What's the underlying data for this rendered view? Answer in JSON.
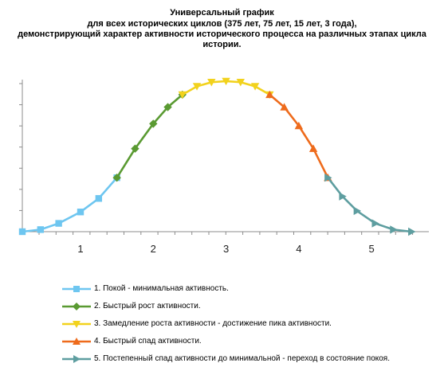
{
  "title_lines": [
    "Универсальный график",
    "для всех  исторических циклов (375 лет, 75 лет, 15 лет, 3 года),",
    "демонстрирующий характер активности исторического процесса на различных этапах цикла истории."
  ],
  "chart_data": {
    "type": "line",
    "title": "Универсальный график для всех исторических циклов (375 лет, 75 лет, 15 лет, 3 года), демонстрирующий характер активности исторического процесса на различных этапах цикла истории.",
    "x_tick_labels": [
      "1",
      "2",
      "3",
      "4",
      "5"
    ],
    "x_tick_positions": [
      1,
      2,
      3,
      4,
      5
    ],
    "xlim": [
      0.2,
      5.7
    ],
    "ylim": [
      0,
      7
    ],
    "y_tick_count": 8,
    "grid": false,
    "legend_position": "bottom",
    "series": [
      {
        "name": "1. Покой - минимальная активность.",
        "color": "#6ec6f0",
        "marker": "square",
        "x": [
          0.2,
          0.45,
          0.7,
          1.0,
          1.25,
          1.5
        ],
        "y": [
          0.0,
          0.1,
          0.4,
          0.95,
          1.6,
          2.6
        ]
      },
      {
        "name": "2. Быстрый рост активности.",
        "color": "#5a9a32",
        "marker": "diamond",
        "x": [
          1.5,
          1.75,
          2.0,
          2.2,
          2.4
        ],
        "y": [
          2.6,
          4.0,
          5.2,
          6.0,
          6.6
        ]
      },
      {
        "name": "3. Замедление роста активности - достижение пика активности.",
        "color": "#f2d21d",
        "marker": "triangle-down",
        "x": [
          2.4,
          2.6,
          2.8,
          3.0,
          3.2,
          3.4,
          3.6
        ],
        "y": [
          6.6,
          7.0,
          7.2,
          7.25,
          7.2,
          7.0,
          6.6
        ]
      },
      {
        "name": "4. Быстрый спад активности.",
        "color": "#ee6b1c",
        "marker": "triangle-up",
        "x": [
          3.6,
          3.8,
          4.0,
          4.2,
          4.4
        ],
        "y": [
          6.6,
          6.0,
          5.1,
          4.0,
          2.6
        ]
      },
      {
        "name": "5. Постепенный спад активности до минимальной - переход в состояние покоя.",
        "color": "#5e9ea0",
        "marker": "triangle-right",
        "x": [
          4.4,
          4.6,
          4.8,
          5.05,
          5.3,
          5.55
        ],
        "y": [
          2.6,
          1.7,
          1.0,
          0.4,
          0.1,
          0.0
        ]
      }
    ]
  }
}
